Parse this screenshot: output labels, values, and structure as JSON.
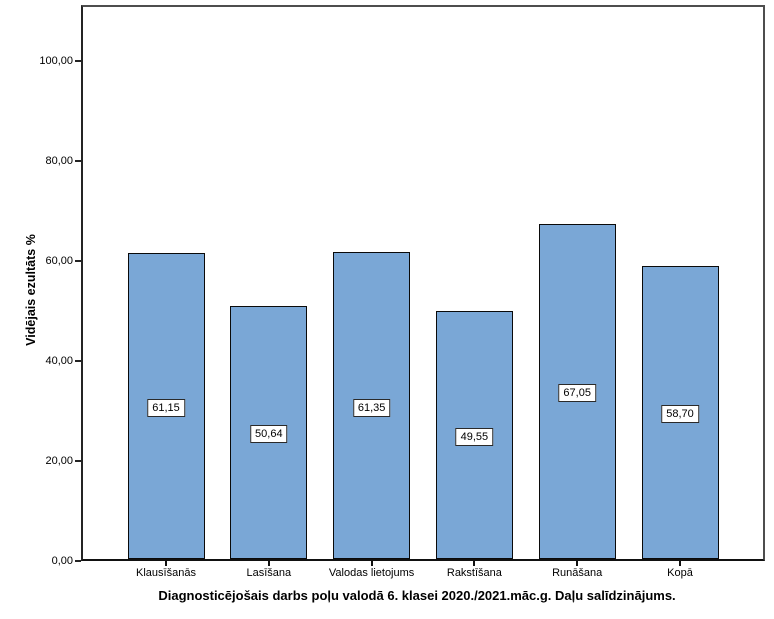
{
  "chart_data": {
    "type": "bar",
    "title": "Diagnosticējošais darbs poļu valodā 6. klasei 2020./2021.māc.g. Daļu salīdzinājums.",
    "xlabel": "",
    "ylabel": "Vidējais ezultāts %",
    "categories": [
      "Klausīšanās",
      "Lasīšana",
      "Valodas lietojums",
      "Rakstīšana",
      "Runāšana",
      "Kopā"
    ],
    "values": [
      61.15,
      50.64,
      61.35,
      49.55,
      67.05,
      58.7
    ],
    "value_labels": [
      "61,15",
      "50,64",
      "61,35",
      "49,55",
      "67,05",
      "58,70"
    ],
    "ylim": [
      0,
      111.2
    ],
    "yticks": [
      0,
      20,
      40,
      60,
      80,
      100
    ],
    "ytick_labels": [
      "0,00",
      "20,00",
      "40,00",
      "60,00",
      "80,00",
      "100,00"
    ],
    "grid": false,
    "legend": false,
    "bar_color": "#7AA7D6",
    "bar_border_color": "#0A0A0A",
    "frame_color": "#4E4E4E",
    "label_box_color": "#FFFFFF"
  }
}
